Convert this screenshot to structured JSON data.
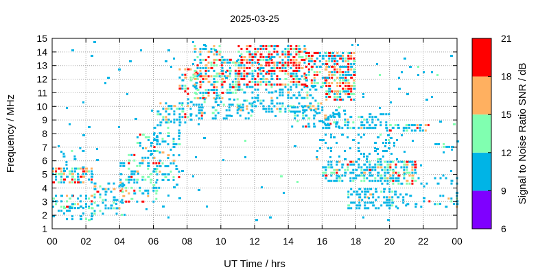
{
  "chart_data": {
    "type": "heatmap",
    "title": "2025-03-25",
    "xlabel": "UT Time / hrs",
    "ylabel": "Frequency / MHz",
    "colorbar_label": "Signal to Noise Ratio SNR / dB",
    "xlim": [
      0,
      24
    ],
    "ylim": [
      1,
      15
    ],
    "x_ticks": [
      "00",
      "02",
      "04",
      "06",
      "08",
      "10",
      "12",
      "14",
      "16",
      "18",
      "20",
      "22",
      "00"
    ],
    "y_ticks": [
      1,
      2,
      3,
      4,
      5,
      6,
      7,
      8,
      9,
      10,
      11,
      12,
      13,
      14,
      15
    ],
    "grid": true,
    "colorbar": {
      "ticks": [
        6,
        9,
        12,
        15,
        18,
        21
      ],
      "bands": [
        {
          "from": 6,
          "to": 9,
          "color": "#7f00ff"
        },
        {
          "from": 9,
          "to": 12,
          "color": "#00b4e6"
        },
        {
          "from": 12,
          "to": 15,
          "color": "#80ffb0"
        },
        {
          "from": 15,
          "to": 18,
          "color": "#ffb060"
        },
        {
          "from": 18,
          "to": 21,
          "color": "#ff0000"
        }
      ]
    },
    "regions": [
      {
        "time": [
          0.0,
          2.3
        ],
        "freq": [
          4.3,
          5.5
        ],
        "density": 0.65,
        "snr": [
          0.35,
          0.6,
          0.85
        ]
      },
      {
        "time": [
          0.0,
          2.3
        ],
        "freq": [
          2.6,
          3.5
        ],
        "density": 0.55,
        "snr": [
          0.55,
          0.75,
          0.9
        ]
      },
      {
        "time": [
          0.0,
          2.3
        ],
        "freq": [
          1.6,
          2.6
        ],
        "density": 0.22,
        "snr": [
          0.75,
          0.9,
          0.96
        ]
      },
      {
        "time": [
          0.3,
          1.8
        ],
        "freq": [
          5.5,
          7.0
        ],
        "density": 0.12,
        "snr": [
          0.85,
          0.95,
          0.98
        ]
      },
      {
        "time": [
          2.3,
          4.1
        ],
        "freq": [
          2.0,
          4.4
        ],
        "density": 0.32,
        "snr": [
          0.7,
          0.88,
          0.96
        ]
      },
      {
        "time": [
          4.0,
          6.3
        ],
        "freq": [
          3.0,
          6.5
        ],
        "density": 0.38,
        "snr": [
          0.6,
          0.82,
          0.93
        ]
      },
      {
        "time": [
          5.0,
          6.3
        ],
        "freq": [
          6.5,
          8.0
        ],
        "density": 0.25,
        "snr": [
          0.7,
          0.88,
          0.95
        ]
      },
      {
        "time": [
          6.0,
          7.5
        ],
        "freq": [
          4.5,
          8.5
        ],
        "density": 0.3,
        "snr": [
          0.75,
          0.9,
          0.97
        ]
      },
      {
        "time": [
          6.2,
          8.2
        ],
        "freq": [
          8.6,
          10.3
        ],
        "density": 0.45,
        "snr": [
          0.55,
          0.85,
          0.95
        ]
      },
      {
        "time": [
          7.5,
          8.6
        ],
        "freq": [
          10.8,
          12.8
        ],
        "density": 0.55,
        "snr": [
          0.35,
          0.6,
          0.8
        ]
      },
      {
        "time": [
          8.4,
          10.1
        ],
        "freq": [
          10.5,
          14.5
        ],
        "density": 0.55,
        "snr": [
          0.35,
          0.6,
          0.8
        ]
      },
      {
        "time": [
          8.0,
          12.0
        ],
        "freq": [
          9.0,
          10.6
        ],
        "density": 0.35,
        "snr": [
          0.75,
          0.9,
          0.97
        ]
      },
      {
        "time": [
          10.0,
          11.0
        ],
        "freq": [
          11.0,
          13.5
        ],
        "density": 0.6,
        "snr": [
          0.45,
          0.7,
          0.85
        ]
      },
      {
        "time": [
          11.0,
          15.0
        ],
        "freq": [
          11.5,
          14.5
        ],
        "density": 0.65,
        "snr": [
          0.3,
          0.45,
          0.6
        ]
      },
      {
        "time": [
          11.0,
          16.0
        ],
        "freq": [
          9.5,
          11.5
        ],
        "density": 0.38,
        "snr": [
          0.75,
          0.9,
          0.97
        ]
      },
      {
        "time": [
          15.0,
          16.2
        ],
        "freq": [
          11.5,
          14.0
        ],
        "density": 0.55,
        "snr": [
          0.35,
          0.55,
          0.75
        ]
      },
      {
        "time": [
          16.2,
          17.9
        ],
        "freq": [
          10.5,
          14.0
        ],
        "density": 0.7,
        "snr": [
          0.35,
          0.55,
          0.75
        ]
      },
      {
        "time": [
          14.0,
          17.0
        ],
        "freq": [
          8.5,
          10.0
        ],
        "density": 0.35,
        "snr": [
          0.8,
          0.93,
          0.98
        ]
      },
      {
        "time": [
          16.0,
          20.0
        ],
        "freq": [
          8.3,
          9.5
        ],
        "density": 0.4,
        "snr": [
          0.85,
          0.95,
          0.98
        ]
      },
      {
        "time": [
          15.5,
          20.5
        ],
        "freq": [
          6.0,
          8.0
        ],
        "density": 0.18,
        "snr": [
          0.9,
          0.97,
          0.99
        ]
      },
      {
        "time": [
          16.0,
          19.5
        ],
        "freq": [
          4.5,
          6.0
        ],
        "density": 0.55,
        "snr": [
          0.8,
          0.93,
          0.97
        ]
      },
      {
        "time": [
          19.5,
          21.5
        ],
        "freq": [
          4.3,
          6.0
        ],
        "density": 0.7,
        "snr": [
          0.5,
          0.72,
          0.88
        ]
      },
      {
        "time": [
          17.5,
          21.0
        ],
        "freq": [
          2.5,
          4.0
        ],
        "density": 0.45,
        "snr": [
          0.85,
          0.95,
          0.98
        ]
      },
      {
        "time": [
          19.8,
          22.5
        ],
        "freq": [
          8.2,
          8.7
        ],
        "density": 0.5,
        "snr": [
          0.45,
          0.75,
          0.9
        ]
      },
      {
        "time": [
          21.0,
          24.0
        ],
        "freq": [
          2.5,
          3.5
        ],
        "density": 0.3,
        "snr": [
          0.8,
          0.92,
          0.97
        ]
      },
      {
        "time": [
          21.5,
          24.0
        ],
        "freq": [
          4.0,
          5.0
        ],
        "density": 0.2,
        "snr": [
          0.85,
          0.95,
          0.98
        ]
      },
      {
        "time": [
          22.5,
          24.0
        ],
        "freq": [
          6.5,
          7.5
        ],
        "density": 0.15,
        "snr": [
          0.8,
          0.95,
          0.98
        ]
      },
      {
        "time": [
          0.0,
          24.0
        ],
        "freq": [
          1.5,
          15.0
        ],
        "density": 0.012,
        "snr": [
          0.9,
          0.98,
          0.99
        ]
      }
    ]
  }
}
